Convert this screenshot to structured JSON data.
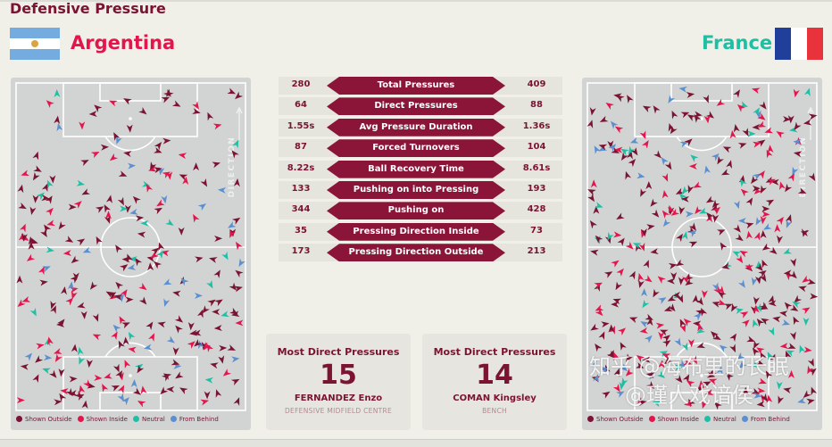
{
  "title": "Defensive Pressure",
  "teams": {
    "left": {
      "name": "Argentina",
      "color": "#e4144c"
    },
    "right": {
      "name": "France",
      "color": "#1fbfa4"
    }
  },
  "pitch_direction_label": "DIRECTION",
  "legend": [
    {
      "label": "Shown Outside",
      "color": "#7a1432"
    },
    {
      "label": "Shown Inside",
      "color": "#e4144c"
    },
    {
      "label": "Neutral",
      "color": "#1fbfa4"
    },
    {
      "label": "From Behind",
      "color": "#5b8fd0"
    }
  ],
  "stats": [
    {
      "label": "Total Pressures",
      "left": "280",
      "right": "409"
    },
    {
      "label": "Direct Pressures",
      "left": "64",
      "right": "88"
    },
    {
      "label": "Avg Pressure Duration",
      "left": "1.55s",
      "right": "1.36s"
    },
    {
      "label": "Forced Turnovers",
      "left": "87",
      "right": "104"
    },
    {
      "label": "Ball Recovery Time",
      "left": "8.22s",
      "right": "8.61s"
    },
    {
      "label": "Pushing on into Pressing",
      "left": "133",
      "right": "193"
    },
    {
      "label": "Pushing on",
      "left": "344",
      "right": "428"
    },
    {
      "label": "Pressing Direction Inside",
      "left": "35",
      "right": "73"
    },
    {
      "label": "Pressing Direction Outside",
      "left": "173",
      "right": "213"
    }
  ],
  "cards": [
    {
      "title": "Most Direct Pressures",
      "value": "15",
      "player": "FERNANDEZ Enzo",
      "position": "DEFENSIVE MIDFIELD CENTRE"
    },
    {
      "title": "Most Direct Pressures",
      "value": "14",
      "player": "COMAN Kingsley",
      "position": "BENCH"
    }
  ],
  "watermark": {
    "line1": "知乎 @海布里的长眠",
    "line2": "@瑾人戏谙侯"
  }
}
